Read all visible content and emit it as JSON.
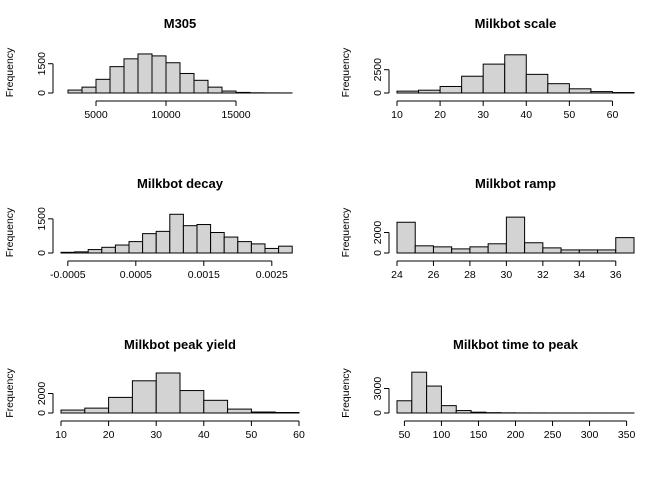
{
  "chart_data": [
    {
      "type": "bar",
      "title": "M305",
      "ylabel": "Frequency",
      "xlim": [
        2500,
        19500
      ],
      "ylim": [
        0,
        2100
      ],
      "xticks": [
        5000,
        10000,
        15000
      ],
      "yticks": [
        0,
        1500
      ],
      "bins": [
        {
          "x0": 3000,
          "x1": 4000,
          "count": 150
        },
        {
          "x0": 4000,
          "x1": 5000,
          "count": 300
        },
        {
          "x0": 5000,
          "x1": 6000,
          "count": 700
        },
        {
          "x0": 6000,
          "x1": 7000,
          "count": 1350
        },
        {
          "x0": 7000,
          "x1": 8000,
          "count": 1750
        },
        {
          "x0": 8000,
          "x1": 9000,
          "count": 2000
        },
        {
          "x0": 9000,
          "x1": 10000,
          "count": 1900
        },
        {
          "x0": 10000,
          "x1": 11000,
          "count": 1550
        },
        {
          "x0": 11000,
          "x1": 12000,
          "count": 1000
        },
        {
          "x0": 12000,
          "x1": 13000,
          "count": 650
        },
        {
          "x0": 13000,
          "x1": 14000,
          "count": 300
        },
        {
          "x0": 14000,
          "x1": 15000,
          "count": 100
        },
        {
          "x0": 15000,
          "x1": 16000,
          "count": 30
        },
        {
          "x0": 16000,
          "x1": 17000,
          "count": 10
        },
        {
          "x0": 17000,
          "x1": 18000,
          "count": 5
        },
        {
          "x0": 18000,
          "x1": 19000,
          "count": 3
        }
      ]
    },
    {
      "type": "bar",
      "title": "Milkbot scale",
      "ylabel": "Frequency",
      "xlim": [
        10,
        65
      ],
      "ylim": [
        0,
        4400
      ],
      "xticks": [
        10,
        20,
        30,
        40,
        50,
        60
      ],
      "yticks": [
        0,
        2500
      ],
      "bins": [
        {
          "x0": 10,
          "x1": 15,
          "count": 200
        },
        {
          "x0": 15,
          "x1": 20,
          "count": 300
        },
        {
          "x0": 20,
          "x1": 25,
          "count": 700
        },
        {
          "x0": 25,
          "x1": 30,
          "count": 1800
        },
        {
          "x0": 30,
          "x1": 35,
          "count": 3100
        },
        {
          "x0": 35,
          "x1": 40,
          "count": 4100
        },
        {
          "x0": 40,
          "x1": 45,
          "count": 2000
        },
        {
          "x0": 45,
          "x1": 50,
          "count": 1000
        },
        {
          "x0": 50,
          "x1": 55,
          "count": 450
        },
        {
          "x0": 55,
          "x1": 60,
          "count": 150
        },
        {
          "x0": 60,
          "x1": 65,
          "count": 50
        }
      ]
    },
    {
      "type": "bar",
      "title": "Milkbot decay",
      "ylabel": "Frequency",
      "xlim": [
        -0.0006,
        0.0029
      ],
      "ylim": [
        0,
        1800
      ],
      "xticks": [
        -0.0005,
        0.0005,
        0.0015,
        0.0025
      ],
      "yticks": [
        0,
        1500
      ],
      "bins": [
        {
          "x0": -0.0006,
          "x1": -0.0004,
          "count": 30
        },
        {
          "x0": -0.0004,
          "x1": -0.0002,
          "count": 50
        },
        {
          "x0": -0.0002,
          "x1": 0.0,
          "count": 150
        },
        {
          "x0": 0.0,
          "x1": 0.0002,
          "count": 250
        },
        {
          "x0": 0.0002,
          "x1": 0.0004,
          "count": 350
        },
        {
          "x0": 0.0004,
          "x1": 0.0006,
          "count": 500
        },
        {
          "x0": 0.0006,
          "x1": 0.0008,
          "count": 850
        },
        {
          "x0": 0.0008,
          "x1": 0.001,
          "count": 950
        },
        {
          "x0": 0.001,
          "x1": 0.0012,
          "count": 1700
        },
        {
          "x0": 0.0012,
          "x1": 0.0014,
          "count": 1200
        },
        {
          "x0": 0.0014,
          "x1": 0.0016,
          "count": 1250
        },
        {
          "x0": 0.0016,
          "x1": 0.0018,
          "count": 900
        },
        {
          "x0": 0.0018,
          "x1": 0.002,
          "count": 700
        },
        {
          "x0": 0.002,
          "x1": 0.0022,
          "count": 500
        },
        {
          "x0": 0.0022,
          "x1": 0.0024,
          "count": 400
        },
        {
          "x0": 0.0024,
          "x1": 0.0026,
          "count": 200
        },
        {
          "x0": 0.0026,
          "x1": 0.0028,
          "count": 300
        }
      ]
    },
    {
      "type": "bar",
      "title": "Milkbot ramp",
      "ylabel": "Frequency",
      "xlim": [
        24,
        37
      ],
      "ylim": [
        0,
        4000
      ],
      "xticks": [
        24,
        26,
        28,
        30,
        32,
        34,
        36
      ],
      "yticks": [
        0,
        2000
      ],
      "bins": [
        {
          "x0": 24,
          "x1": 25,
          "count": 3000
        },
        {
          "x0": 25,
          "x1": 26,
          "count": 700
        },
        {
          "x0": 26,
          "x1": 27,
          "count": 600
        },
        {
          "x0": 27,
          "x1": 28,
          "count": 400
        },
        {
          "x0": 28,
          "x1": 29,
          "count": 600
        },
        {
          "x0": 29,
          "x1": 30,
          "count": 900
        },
        {
          "x0": 30,
          "x1": 31,
          "count": 3500
        },
        {
          "x0": 31,
          "x1": 32,
          "count": 1000
        },
        {
          "x0": 32,
          "x1": 33,
          "count": 500
        },
        {
          "x0": 33,
          "x1": 34,
          "count": 300
        },
        {
          "x0": 34,
          "x1": 35,
          "count": 300
        },
        {
          "x0": 35,
          "x1": 36,
          "count": 300
        },
        {
          "x0": 36,
          "x1": 37,
          "count": 1500
        }
      ]
    },
    {
      "type": "bar",
      "title": "Milkbot peak yield",
      "ylabel": "Frequency",
      "xlim": [
        10,
        60
      ],
      "ylim": [
        0,
        4100
      ],
      "xticks": [
        10,
        20,
        30,
        40,
        50,
        60
      ],
      "yticks": [
        0,
        2000
      ],
      "bins": [
        {
          "x0": 10,
          "x1": 15,
          "count": 300
        },
        {
          "x0": 15,
          "x1": 20,
          "count": 500
        },
        {
          "x0": 20,
          "x1": 25,
          "count": 1600
        },
        {
          "x0": 25,
          "x1": 30,
          "count": 3300
        },
        {
          "x0": 30,
          "x1": 35,
          "count": 4100
        },
        {
          "x0": 35,
          "x1": 40,
          "count": 2300
        },
        {
          "x0": 40,
          "x1": 45,
          "count": 1300
        },
        {
          "x0": 45,
          "x1": 50,
          "count": 400
        },
        {
          "x0": 50,
          "x1": 55,
          "count": 100
        },
        {
          "x0": 55,
          "x1": 60,
          "count": 50
        }
      ]
    },
    {
      "type": "bar",
      "title": "Milkbot time to peak",
      "ylabel": "Frequency",
      "xlim": [
        40,
        360
      ],
      "ylim": [
        0,
        4900
      ],
      "xticks": [
        50,
        100,
        150,
        200,
        250,
        300,
        350
      ],
      "yticks": [
        0,
        3000
      ],
      "bins": [
        {
          "x0": 40,
          "x1": 60,
          "count": 1500
        },
        {
          "x0": 60,
          "x1": 80,
          "count": 5000
        },
        {
          "x0": 80,
          "x1": 100,
          "count": 3300
        },
        {
          "x0": 100,
          "x1": 120,
          "count": 900
        },
        {
          "x0": 120,
          "x1": 140,
          "count": 300
        },
        {
          "x0": 140,
          "x1": 160,
          "count": 100
        },
        {
          "x0": 160,
          "x1": 180,
          "count": 40
        },
        {
          "x0": 180,
          "x1": 200,
          "count": 20
        },
        {
          "x0": 200,
          "x1": 220,
          "count": 10
        },
        {
          "x0": 220,
          "x1": 240,
          "count": 8
        },
        {
          "x0": 240,
          "x1": 260,
          "count": 5
        },
        {
          "x0": 260,
          "x1": 280,
          "count": 4
        },
        {
          "x0": 280,
          "x1": 300,
          "count": 3
        },
        {
          "x0": 300,
          "x1": 320,
          "count": 2
        },
        {
          "x0": 320,
          "x1": 340,
          "count": 2
        },
        {
          "x0": 340,
          "x1": 360,
          "count": 1
        }
      ]
    }
  ],
  "colors": {
    "bar_fill": "#d3d3d3",
    "bar_stroke": "#000000",
    "background": "#ffffff"
  }
}
